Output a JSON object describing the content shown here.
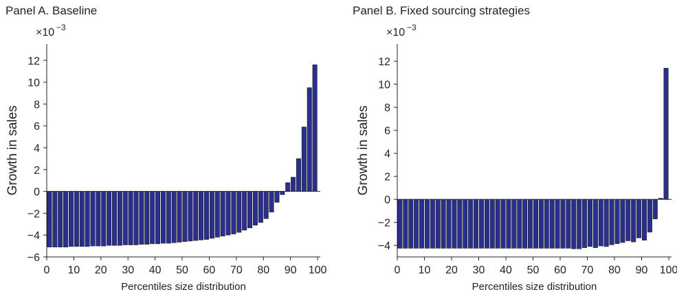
{
  "chart_data": [
    {
      "type": "bar",
      "title": "Panel A. Baseline",
      "xlabel": "Percentiles size distribution",
      "ylabel": "Growth in sales",
      "y_multiplier": "×10",
      "y_exponent": "−3",
      "xlim": [
        0,
        101
      ],
      "ylim": [
        -6,
        13.5
      ],
      "xticks": [
        0,
        10,
        20,
        30,
        40,
        50,
        60,
        70,
        80,
        90,
        100
      ],
      "yticks": [
        -6,
        -4,
        -2,
        0,
        2,
        4,
        6,
        8,
        10,
        12
      ],
      "yticklabels": [
        "−6",
        "−4",
        "−2",
        "0",
        "2",
        "4",
        "6",
        "8",
        "10",
        "12"
      ],
      "bar_color": "#2b2f8c",
      "x": [
        2,
        4,
        6,
        8,
        10,
        12,
        14,
        16,
        18,
        20,
        22,
        24,
        26,
        28,
        30,
        32,
        34,
        36,
        38,
        40,
        42,
        44,
        46,
        48,
        50,
        52,
        54,
        56,
        58,
        60,
        62,
        64,
        66,
        68,
        70,
        72,
        74,
        76,
        78,
        80,
        82,
        84,
        86,
        88,
        90,
        92,
        94,
        96,
        98,
        100
      ],
      "values": [
        -5.1,
        -5.1,
        -5.1,
        -5.1,
        -5.05,
        -5.05,
        -5.05,
        -5.05,
        -5.0,
        -5.0,
        -5.0,
        -4.95,
        -4.95,
        -4.95,
        -4.9,
        -4.9,
        -4.9,
        -4.85,
        -4.85,
        -4.8,
        -4.8,
        -4.75,
        -4.75,
        -4.7,
        -4.65,
        -4.6,
        -4.55,
        -4.5,
        -4.45,
        -4.4,
        -4.3,
        -4.2,
        -4.1,
        -4.0,
        -3.9,
        -3.75,
        -3.55,
        -3.35,
        -3.1,
        -2.85,
        -2.5,
        -1.9,
        -1.0,
        -0.3,
        0.8,
        1.3,
        3.0,
        5.9,
        9.5,
        11.6
      ]
    },
    {
      "type": "bar",
      "title": "Panel B. Fixed sourcing strategies",
      "xlabel": "Percentiles size distribution",
      "ylabel": "Growth in sales",
      "y_multiplier": "×10",
      "y_exponent": "−3",
      "xlim": [
        0,
        101
      ],
      "ylim": [
        -5,
        13.5
      ],
      "xticks": [
        0,
        10,
        20,
        30,
        40,
        50,
        60,
        70,
        80,
        90,
        100
      ],
      "yticks": [
        -4,
        -2,
        0,
        2,
        4,
        6,
        8,
        10,
        12
      ],
      "yticklabels": [
        "−4",
        "−2",
        "0",
        "2",
        "4",
        "6",
        "8",
        "10",
        "12"
      ],
      "bar_color": "#2b2f8c",
      "x": [
        2,
        4,
        6,
        8,
        10,
        12,
        14,
        16,
        18,
        20,
        22,
        24,
        26,
        28,
        30,
        32,
        34,
        36,
        38,
        40,
        42,
        44,
        46,
        48,
        50,
        52,
        54,
        56,
        58,
        60,
        62,
        64,
        66,
        68,
        70,
        72,
        74,
        76,
        78,
        80,
        82,
        84,
        86,
        88,
        90,
        92,
        94,
        96,
        98,
        100
      ],
      "values": [
        -4.25,
        -4.25,
        -4.25,
        -4.25,
        -4.25,
        -4.25,
        -4.25,
        -4.25,
        -4.25,
        -4.25,
        -4.25,
        -4.25,
        -4.25,
        -4.25,
        -4.25,
        -4.25,
        -4.25,
        -4.25,
        -4.25,
        -4.25,
        -4.25,
        -4.25,
        -4.25,
        -4.25,
        -4.25,
        -4.25,
        -4.25,
        -4.25,
        -4.25,
        -4.25,
        -4.25,
        -4.25,
        -4.3,
        -4.3,
        -4.2,
        -4.1,
        -4.2,
        -4.05,
        -4.1,
        -3.95,
        -3.85,
        -3.75,
        -3.6,
        -3.7,
        -3.35,
        -3.55,
        -2.85,
        -1.7,
        0.1,
        11.4
      ]
    }
  ]
}
